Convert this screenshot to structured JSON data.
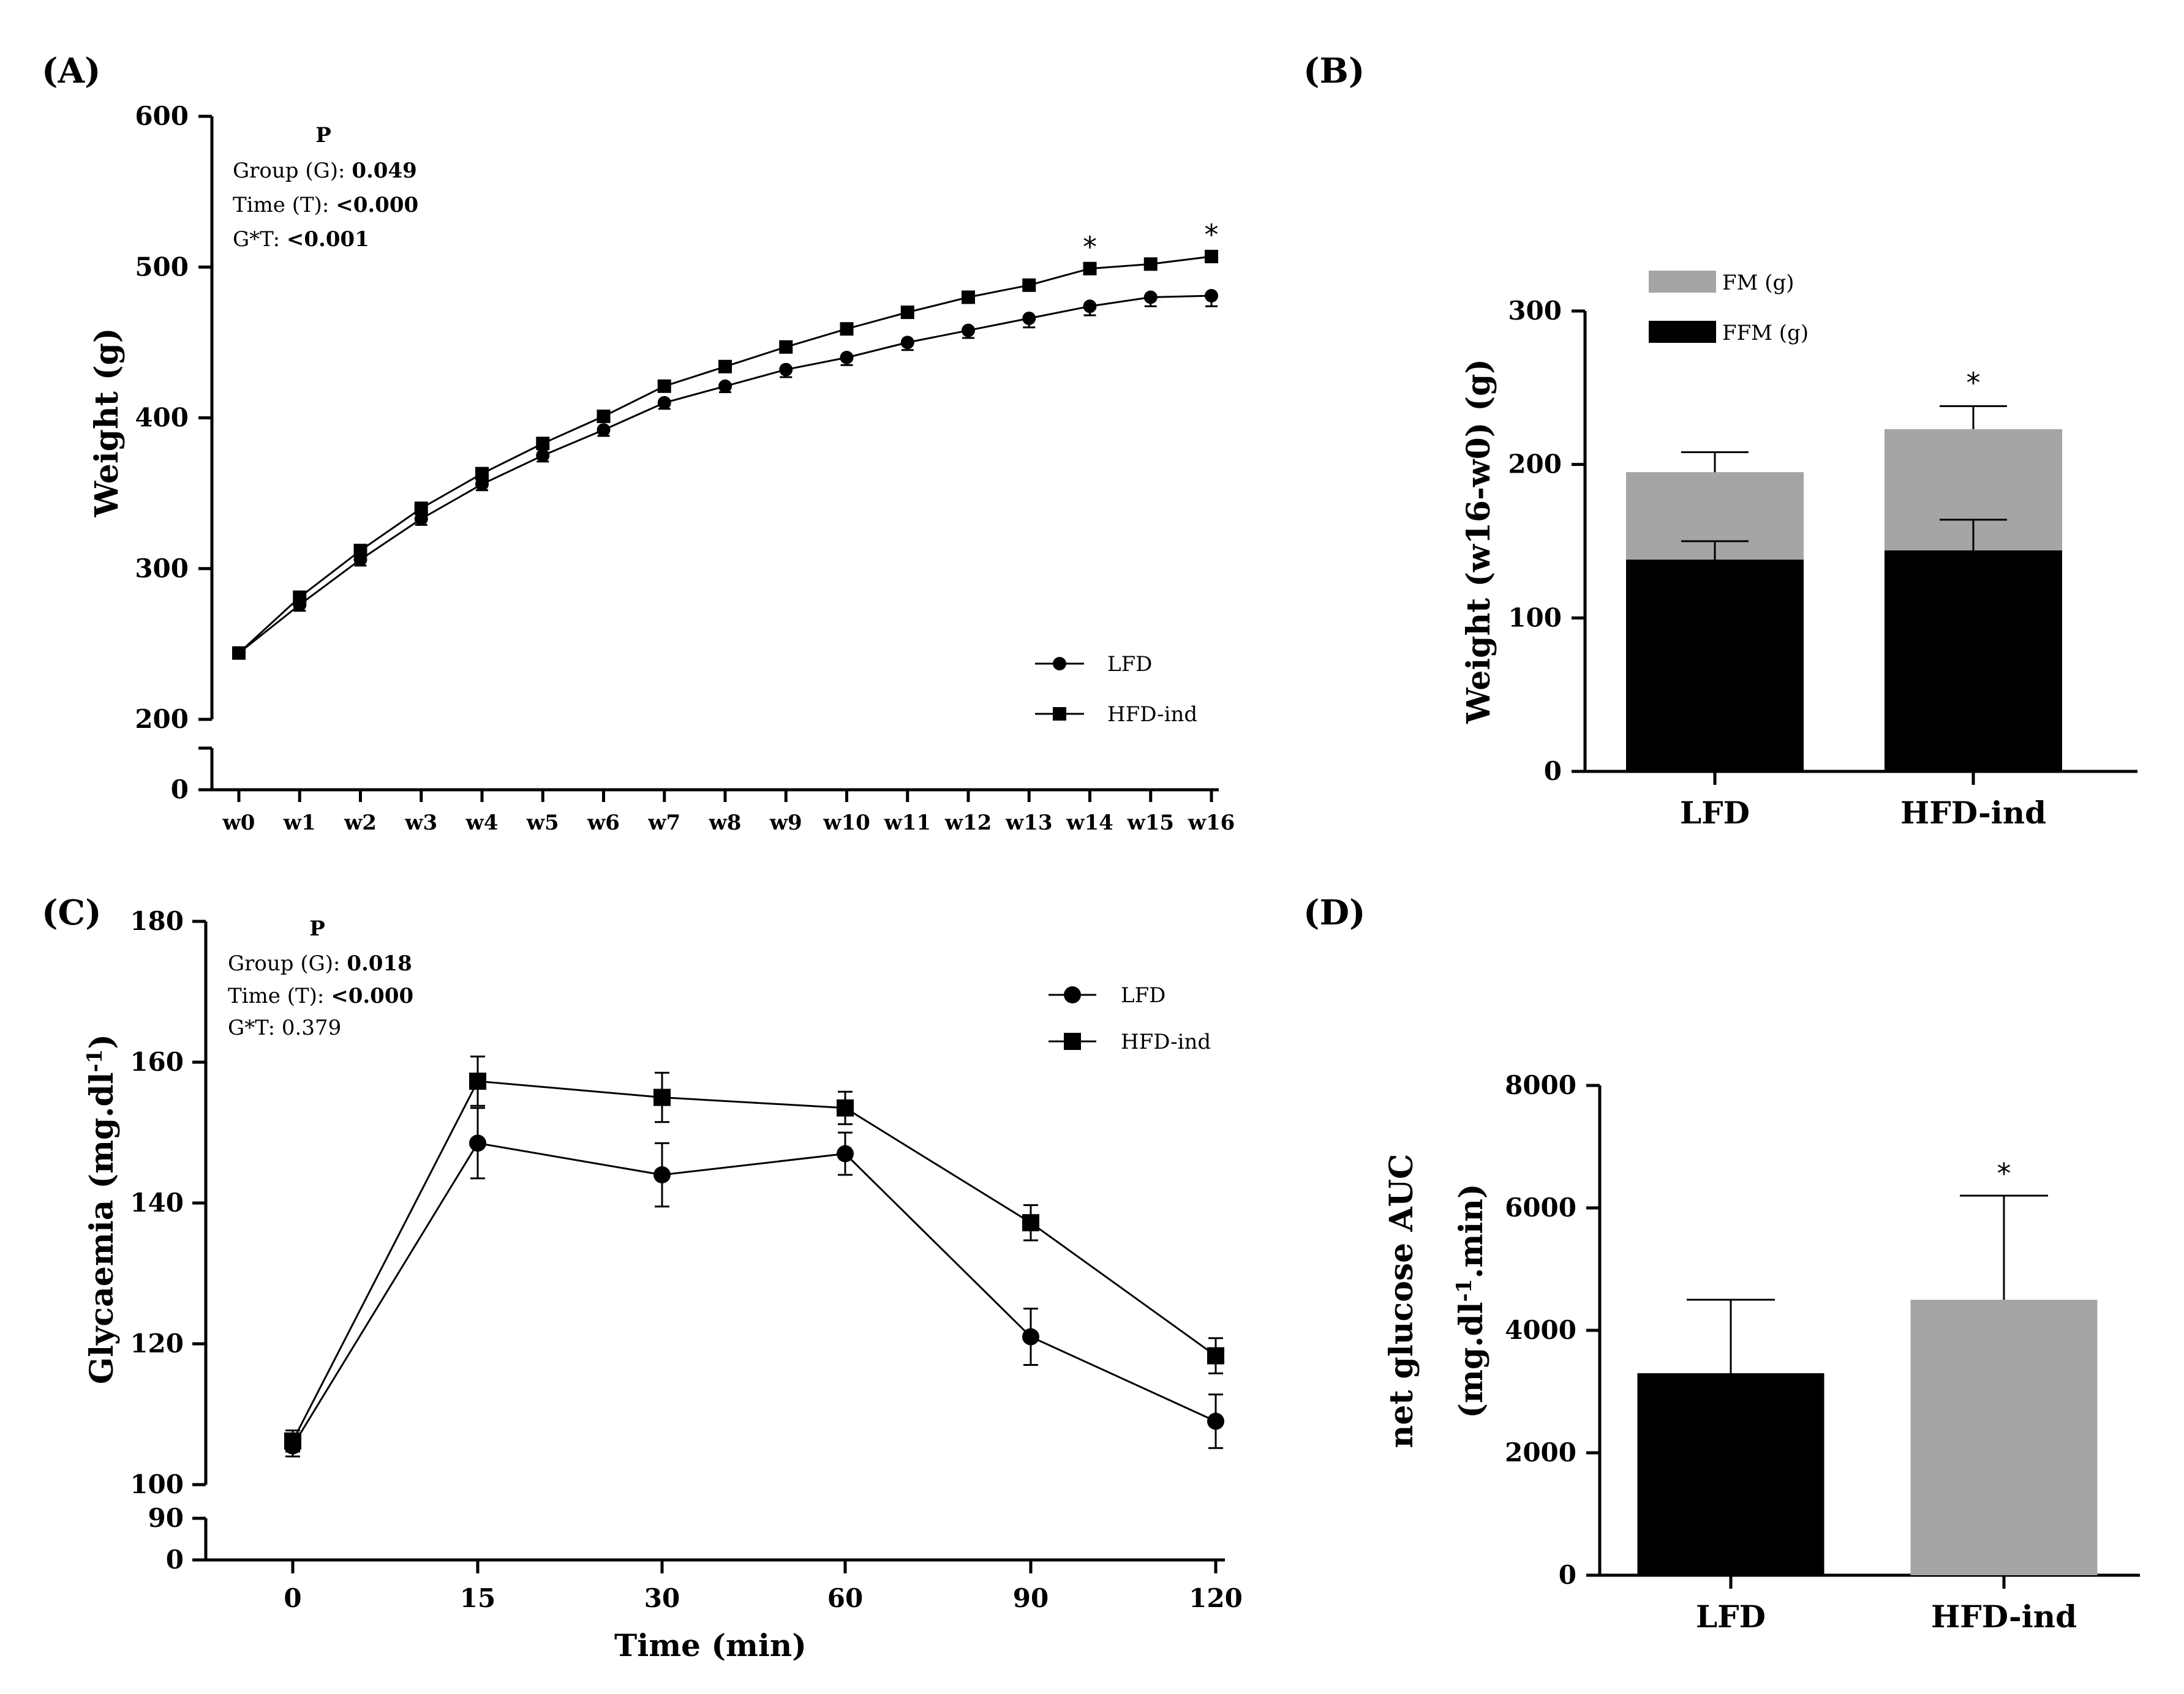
{
  "colors": {
    "black": "#000000",
    "grey": "#a5a5a8",
    "background": "#ffffff"
  },
  "chart_data": [
    {
      "id": "A",
      "panel_label": "(A)",
      "type": "line",
      "ylabel": "Weight (g)",
      "xlabel": "",
      "categories": [
        "w0",
        "w1",
        "w2",
        "w3",
        "w4",
        "w5",
        "w6",
        "w7",
        "w8",
        "w9",
        "w10",
        "w11",
        "w12",
        "w13",
        "w14",
        "w15",
        "w16"
      ],
      "yticks": [
        "600",
        "500",
        "400",
        "300",
        "200",
        "0"
      ],
      "ylim": [
        200,
        600
      ],
      "axis_break": true,
      "stats_title": "P",
      "stats": [
        {
          "label": "Group (G): ",
          "value": "0.049",
          "bold": true
        },
        {
          "label": "Time (T): ",
          "value": "<0.000",
          "bold": true
        },
        {
          "label": "G*T: ",
          "value": "<0.001",
          "bold": true
        }
      ],
      "series": [
        {
          "name": "LFD",
          "marker": "circle",
          "values": [
            244,
            276,
            306,
            333,
            356,
            375,
            392,
            410,
            421,
            432,
            440,
            450,
            458,
            466,
            474,
            480,
            481
          ],
          "errors": [
            3,
            4,
            4,
            4,
            4,
            4,
            4,
            4,
            4,
            5,
            5,
            5,
            5,
            6,
            6,
            6,
            7
          ]
        },
        {
          "name": "HFD-ind",
          "marker": "square",
          "values": [
            244,
            281,
            312,
            340,
            363,
            383,
            401,
            421,
            434,
            447,
            459,
            470,
            480,
            488,
            499,
            502,
            507
          ],
          "errors": [
            3,
            3,
            3,
            3,
            3,
            3,
            3,
            3,
            3,
            3,
            3,
            3,
            3,
            3,
            3,
            3,
            3
          ]
        }
      ],
      "significance": [
        {
          "category": "w14",
          "text": "*"
        },
        {
          "category": "w16",
          "text": "*"
        }
      ],
      "legend": [
        "LFD",
        "HFD-ind"
      ]
    },
    {
      "id": "B",
      "panel_label": "(B)",
      "type": "bar",
      "stacked": true,
      "ylabel": "Weight (w16-w0) (g)",
      "categories": [
        "LFD",
        "HFD-ind"
      ],
      "yticks": [
        "300",
        "200",
        "100",
        "0"
      ],
      "ylim": [
        0,
        300
      ],
      "series": [
        {
          "name": "FFM (g)",
          "color": "#000000",
          "values": [
            138,
            144
          ],
          "errors": [
            12,
            20
          ]
        },
        {
          "name": "FM (g)",
          "color": "#a5a5a8",
          "values": [
            57,
            79
          ],
          "errors": [
            13,
            15
          ]
        }
      ],
      "significance": [
        {
          "category": "HFD-ind",
          "text": "*"
        }
      ],
      "legend": [
        "FM (g)",
        "FFM (g)"
      ]
    },
    {
      "id": "C",
      "panel_label": "(C)",
      "type": "line",
      "ylabel": "Glycaemia (mg.dl-1)",
      "ylabel_main": "Glycaemia (mg.dl",
      "ylabel_sup": "-1",
      "ylabel_close": ")",
      "xlabel": "Time (min)",
      "categories": [
        "0",
        "15",
        "30",
        "60",
        "90",
        "120"
      ],
      "yticks": [
        "180",
        "160",
        "140",
        "120",
        "100",
        "90",
        "0"
      ],
      "ylim": [
        100,
        180
      ],
      "axis_break": true,
      "stats_title": "P",
      "stats": [
        {
          "label": "Group (G): ",
          "value": "0.018",
          "bold": true
        },
        {
          "label": "Time (T): ",
          "value": "<0.000",
          "bold": true
        },
        {
          "label": "G*T: ",
          "value": "0.379",
          "bold": false
        }
      ],
      "series": [
        {
          "name": "LFD",
          "marker": "circle",
          "values": [
            105.5,
            148.5,
            144,
            147,
            121,
            109
          ],
          "errors": [
            1.5,
            5,
            4.5,
            3,
            4,
            3.8
          ]
        },
        {
          "name": "HFD-ind",
          "marker": "square",
          "values": [
            106.2,
            157.3,
            155,
            153.5,
            137.2,
            118.3
          ],
          "errors": [
            1.5,
            3.5,
            3.5,
            2.3,
            2.5,
            2.5
          ]
        }
      ],
      "legend": [
        "LFD",
        "HFD-ind"
      ]
    },
    {
      "id": "D",
      "panel_label": "(D)",
      "type": "bar",
      "ylabel_line1": "net glucose AUC",
      "ylabel_line2_main": "(mg.dl",
      "ylabel_line2_sup": "-1",
      "ylabel_line2_end": ".min)",
      "categories": [
        "LFD",
        "HFD-ind"
      ],
      "yticks": [
        "8000",
        "6000",
        "4000",
        "2000",
        "0"
      ],
      "ylim": [
        0,
        8000
      ],
      "series": [
        {
          "name": "net glucose AUC",
          "colors": [
            "#000000",
            "#a5a5a8"
          ],
          "values": [
            3300,
            4500
          ],
          "errors": [
            1200,
            1700
          ]
        }
      ],
      "significance": [
        {
          "category": "HFD-ind",
          "text": "*"
        }
      ]
    }
  ]
}
